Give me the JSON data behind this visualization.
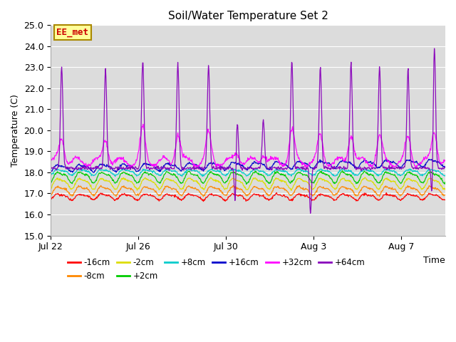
{
  "title": "Soil/Water Temperature Set 2",
  "ylabel": "Temperature (C)",
  "xlabel": "Time",
  "ylim": [
    15.0,
    25.0
  ],
  "yticks": [
    15.0,
    16.0,
    17.0,
    18.0,
    19.0,
    20.0,
    21.0,
    22.0,
    23.0,
    24.0,
    25.0
  ],
  "xtick_labels": [
    "Jul 22",
    "Jul 26",
    "Jul 30",
    "Aug 3",
    "Aug 7"
  ],
  "xtick_pos": [
    0,
    4,
    8,
    12,
    16
  ],
  "xlim": [
    0,
    18
  ],
  "plot_bg": "#dcdcdc",
  "series": [
    {
      "label": "-16cm",
      "color": "#ff0000",
      "base": 16.85,
      "small_amp": 0.12,
      "trend": 0.0
    },
    {
      "label": "-8cm",
      "color": "#ff8800",
      "base": 17.15,
      "small_amp": 0.18,
      "trend": 0.0
    },
    {
      "label": "-2cm",
      "color": "#dddd00",
      "base": 17.5,
      "small_amp": 0.22,
      "trend": 0.0
    },
    {
      "label": "+2cm",
      "color": "#00cc00",
      "base": 17.8,
      "small_amp": 0.22,
      "trend": 0.0
    },
    {
      "label": "+8cm",
      "color": "#00cccc",
      "base": 18.02,
      "small_amp": 0.12,
      "trend": 0.0
    },
    {
      "label": "+16cm",
      "color": "#0000cc",
      "base": 18.2,
      "small_amp": 0.15,
      "trend": 0.003
    },
    {
      "label": "+32cm",
      "color": "#ff00ff",
      "base": 18.5,
      "small_amp": 0.0,
      "trend": 0.0
    },
    {
      "label": "+64cm",
      "color": "#8800bb",
      "base": 18.2,
      "small_amp": 0.0,
      "trend": 0.0
    }
  ],
  "annotation_text": "EE_met",
  "annotation_color": "#cc0000",
  "annotation_bg": "#ffff99",
  "annotation_border": "#aa8800",
  "grid_color": "#ffffff",
  "spike64_peaks": [
    0.5,
    2.5,
    4.2,
    5.8,
    7.2,
    8.5,
    9.7,
    11.0,
    12.3,
    13.7,
    15.0,
    16.3,
    17.5
  ],
  "spike64_heights": [
    4.8,
    4.7,
    5.1,
    5.0,
    4.9,
    2.4,
    2.3,
    5.1,
    4.8,
    5.0,
    4.8,
    4.7,
    5.8
  ],
  "spike32_peaks": [
    0.5,
    2.5,
    4.2,
    5.8,
    7.2,
    8.5,
    9.7,
    11.0,
    12.3,
    13.7,
    15.0,
    16.3,
    17.5
  ],
  "spike32_heights": [
    1.2,
    1.1,
    1.5,
    1.4,
    1.3,
    0.5,
    0.4,
    1.5,
    1.2,
    1.4,
    1.2,
    1.1,
    1.5
  ]
}
